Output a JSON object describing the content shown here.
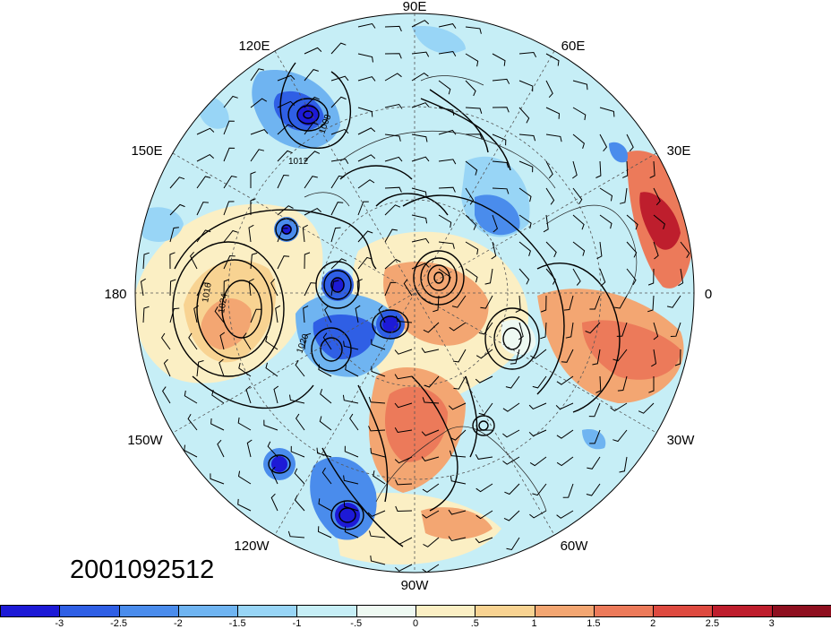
{
  "map": {
    "projection": "north-polar-stereographic",
    "longitude_labels": {
      "lon_90E": "90E",
      "lon_60E": "60E",
      "lon_30E": "30E",
      "lon_0": "0",
      "lon_30W": "30W",
      "lon_60W": "60W",
      "lon_90W": "90W",
      "lon_120W": "120W",
      "lon_150W": "150W",
      "lon_180": "180",
      "lon_150E": "150E",
      "lon_120E": "120E"
    },
    "contour_labels": [
      "1008",
      "1012",
      "1016",
      "1020",
      "1024"
    ],
    "background_color": "#c6eef6"
  },
  "timestamp": "2001092512",
  "colorbar": {
    "ticks": [
      "-3",
      "-2.5",
      "-2",
      "-1.5",
      "-1",
      "-.5",
      "0",
      ".5",
      "1",
      "1.5",
      "2",
      "2.5",
      "3"
    ],
    "colors": [
      "#1d1ad6",
      "#2f5fe5",
      "#4a8cec",
      "#6fb4f1",
      "#98d5f6",
      "#c6eef6",
      "#eef9f2",
      "#fbefc4",
      "#f8d392",
      "#f3a672",
      "#ec7a5a",
      "#de4a40",
      "#be1e2d",
      "#8e0f1f"
    ]
  }
}
